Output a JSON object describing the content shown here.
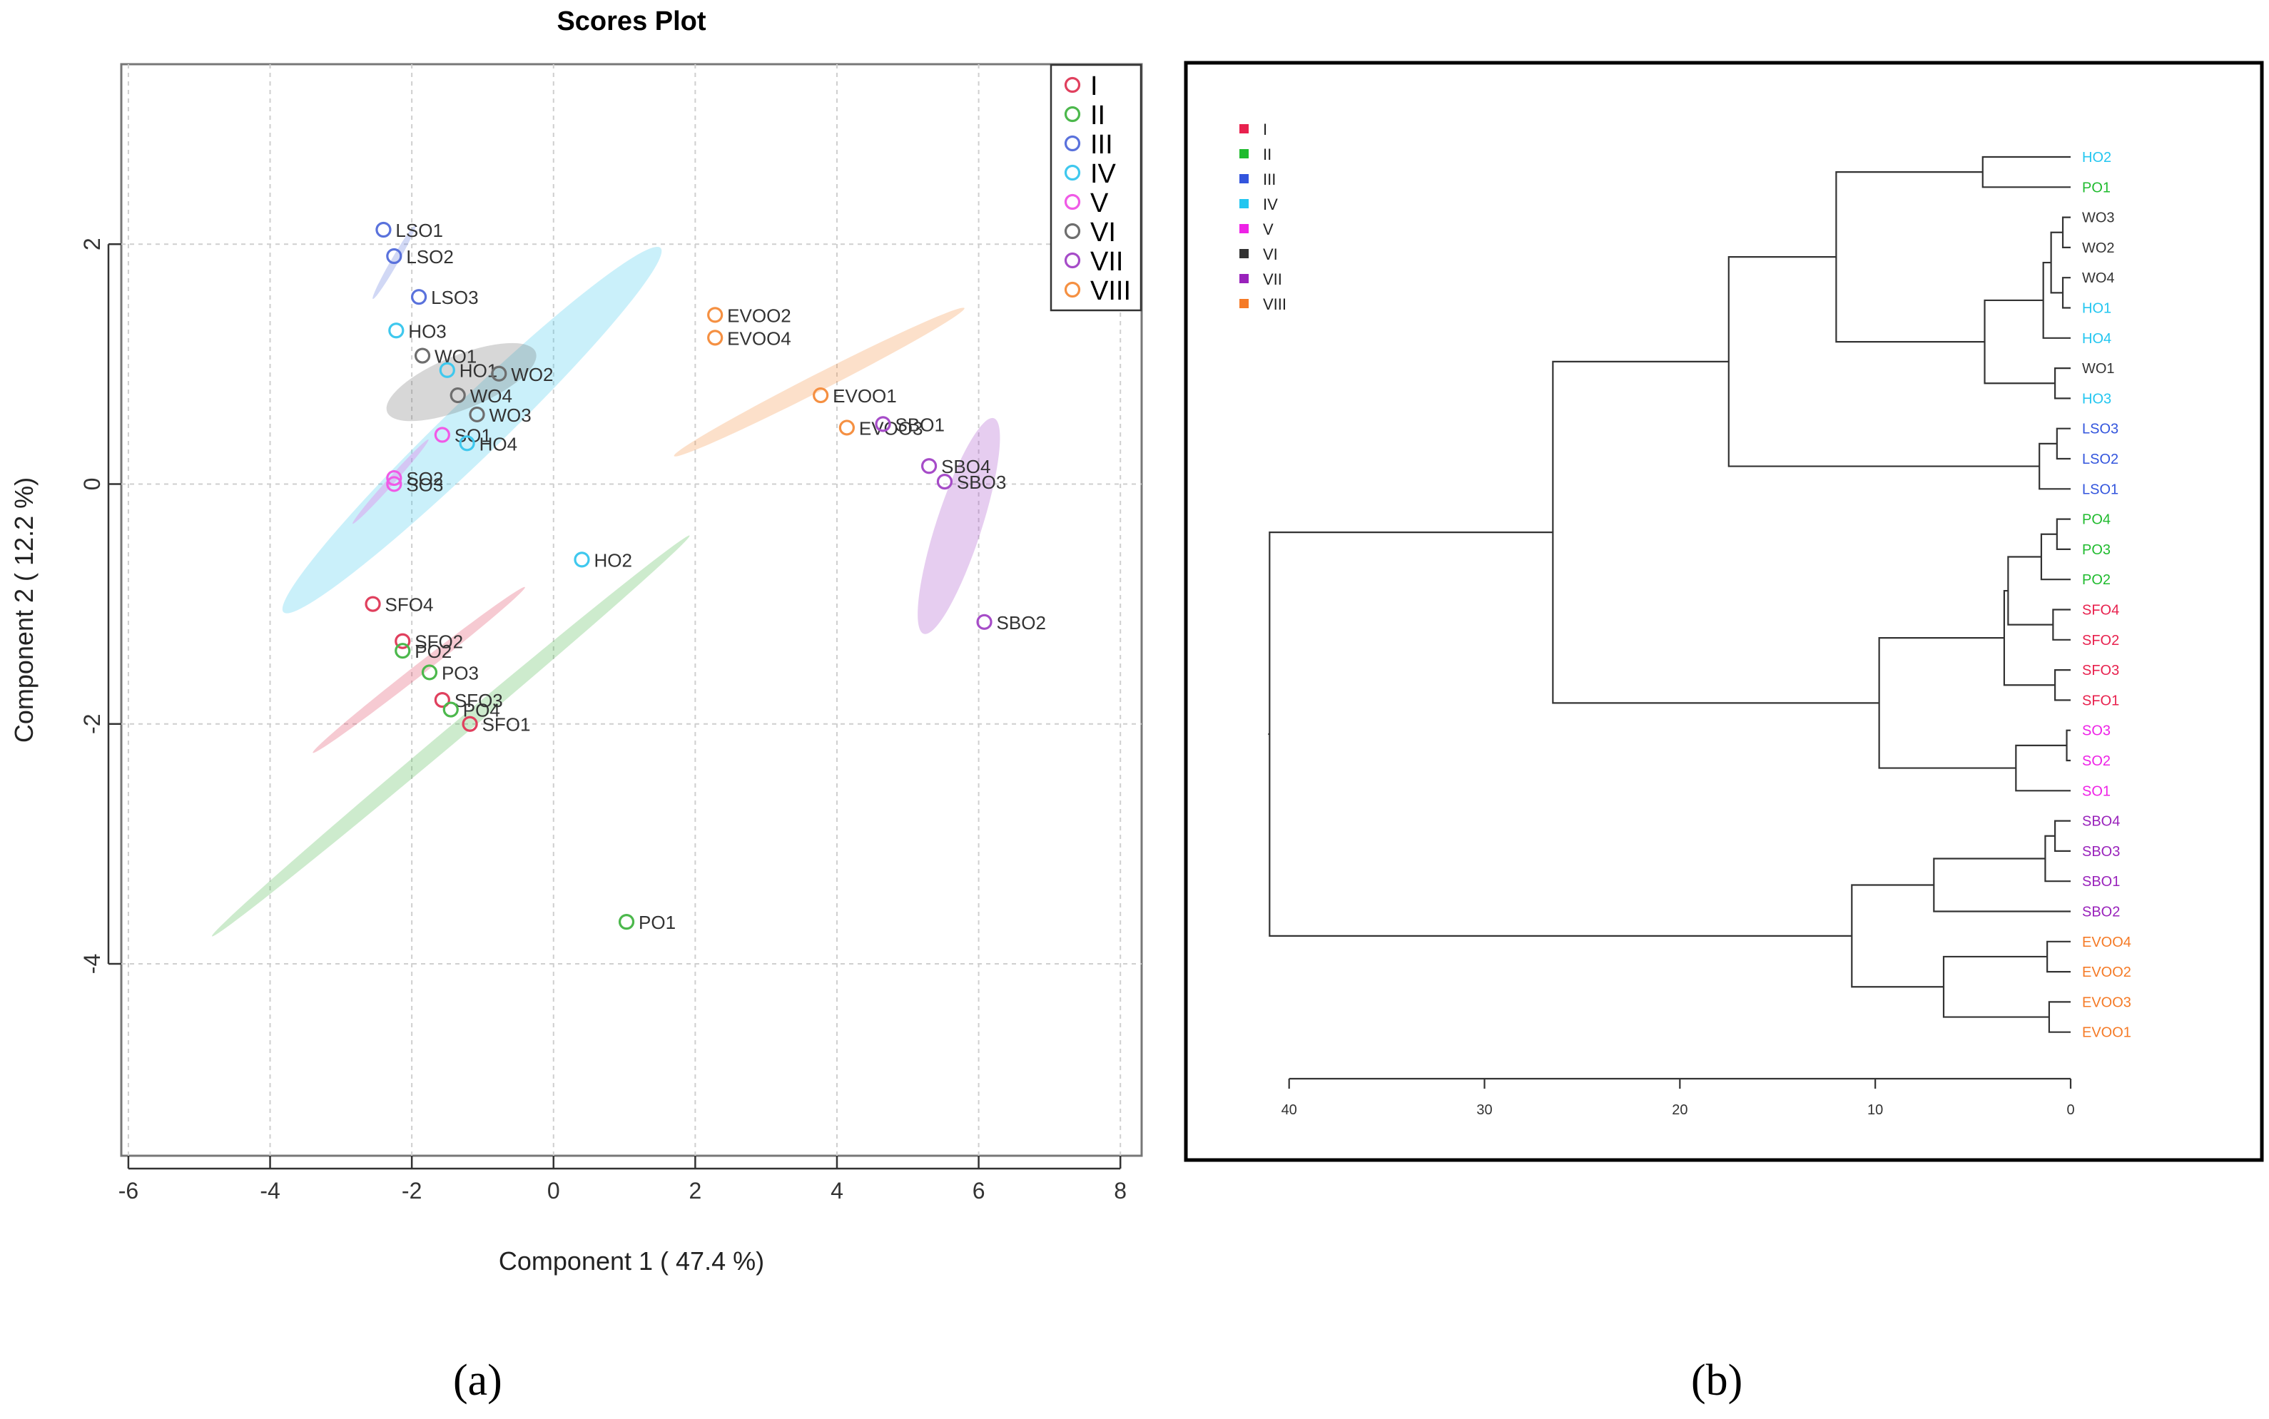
{
  "panel_labels": {
    "a": "(a)",
    "b": "(b)"
  },
  "chart_data": [
    {
      "type": "scatter",
      "title": "Scores Plot",
      "xlabel": "Component 1 ( 47.4 %)",
      "ylabel": "Component 2 ( 12.2 %)",
      "xlim": [
        -6.1,
        8.3
      ],
      "ylim": [
        -5.6,
        3.5
      ],
      "xticks": [
        -6,
        -4,
        -2,
        0,
        2,
        4,
        6,
        8
      ],
      "yticks": [
        -4,
        -2,
        0,
        2
      ],
      "grid": true,
      "legend": "top-right",
      "groups": [
        {
          "name": "I",
          "color": "#e0405e"
        },
        {
          "name": "II",
          "color": "#4cb84c"
        },
        {
          "name": "III",
          "color": "#5a72dc"
        },
        {
          "name": "IV",
          "color": "#3fc8ee"
        },
        {
          "name": "V",
          "color": "#f05ae6"
        },
        {
          "name": "VI",
          "color": "#6e6e6e"
        },
        {
          "name": "VII",
          "color": "#a64cc8"
        },
        {
          "name": "VIII",
          "color": "#f59042"
        }
      ],
      "ellipses": [
        {
          "group": "I",
          "cx": -1.9,
          "cy": -1.55,
          "a": 1.9,
          "b": 0.08,
          "angle": -38
        },
        {
          "group": "II",
          "cx": -1.45,
          "cy": -2.1,
          "a": 4.4,
          "b": 0.11,
          "angle": -40
        },
        {
          "group": "III",
          "cx": -2.25,
          "cy": 1.85,
          "a": 0.6,
          "b": 0.05,
          "angle": -60
        },
        {
          "group": "IV",
          "cx": -1.15,
          "cy": 0.45,
          "a": 3.7,
          "b": 0.4,
          "angle": -44
        },
        {
          "group": "V",
          "cx": -2.3,
          "cy": 0.02,
          "a": 0.8,
          "b": 0.05,
          "angle": -48
        },
        {
          "group": "VI",
          "cx": -1.3,
          "cy": 0.85,
          "a": 1.13,
          "b": 0.38,
          "angle": -22
        },
        {
          "group": "VII",
          "cx": 5.72,
          "cy": -0.35,
          "a": 1.6,
          "b": 0.32,
          "angle": -72
        },
        {
          "group": "VIII",
          "cx": 3.75,
          "cy": 0.85,
          "a": 2.3,
          "b": 0.12,
          "angle": -27
        }
      ],
      "points": [
        {
          "label": "LSO1",
          "group": "III",
          "x": -2.4,
          "y": 2.12
        },
        {
          "label": "LSO2",
          "group": "III",
          "x": -2.25,
          "y": 1.9
        },
        {
          "label": "LSO3",
          "group": "III",
          "x": -1.9,
          "y": 1.56
        },
        {
          "label": "HO3",
          "group": "IV",
          "x": -2.22,
          "y": 1.28
        },
        {
          "label": "WO1",
          "group": "VI",
          "x": -1.85,
          "y": 1.07
        },
        {
          "label": "HO1",
          "group": "IV",
          "x": -1.5,
          "y": 0.95
        },
        {
          "label": "WO2",
          "group": "VI",
          "x": -0.77,
          "y": 0.92
        },
        {
          "label": "WO4",
          "group": "VI",
          "x": -1.35,
          "y": 0.74
        },
        {
          "label": "WO3",
          "group": "VI",
          "x": -1.08,
          "y": 0.58
        },
        {
          "label": "SO1",
          "group": "V",
          "x": -1.57,
          "y": 0.41
        },
        {
          "label": "HO4",
          "group": "IV",
          "x": -1.22,
          "y": 0.34
        },
        {
          "label": "SO2",
          "group": "V",
          "x": -2.25,
          "y": 0.05
        },
        {
          "label": "SO3",
          "group": "V",
          "x": -2.25,
          "y": 0.0
        },
        {
          "label": "HO2",
          "group": "IV",
          "x": 0.4,
          "y": -0.63
        },
        {
          "label": "SFO4",
          "group": "I",
          "x": -2.55,
          "y": -1.0
        },
        {
          "label": "SFO2",
          "group": "I",
          "x": -2.13,
          "y": -1.31
        },
        {
          "label": "PO2",
          "group": "II",
          "x": -2.13,
          "y": -1.39
        },
        {
          "label": "PO3",
          "group": "II",
          "x": -1.75,
          "y": -1.57
        },
        {
          "label": "SFO3",
          "group": "I",
          "x": -1.57,
          "y": -1.8
        },
        {
          "label": "PO4",
          "group": "II",
          "x": -1.45,
          "y": -1.88
        },
        {
          "label": "SFO1",
          "group": "I",
          "x": -1.18,
          "y": -2.0
        },
        {
          "label": "PO1",
          "group": "II",
          "x": 1.03,
          "y": -3.65
        },
        {
          "label": "EVOO2",
          "group": "VIII",
          "x": 2.28,
          "y": 1.41
        },
        {
          "label": "EVOO4",
          "group": "VIII",
          "x": 2.28,
          "y": 1.22
        },
        {
          "label": "EVOO1",
          "group": "VIII",
          "x": 3.77,
          "y": 0.74
        },
        {
          "label": "EVOO3",
          "group": "VIII",
          "x": 4.14,
          "y": 0.47
        },
        {
          "label": "SBO1",
          "group": "VII",
          "x": 4.65,
          "y": 0.5
        },
        {
          "label": "SBO4",
          "group": "VII",
          "x": 5.3,
          "y": 0.15
        },
        {
          "label": "SBO3",
          "group": "VII",
          "x": 5.52,
          "y": 0.02
        },
        {
          "label": "SBO2",
          "group": "VII",
          "x": 6.08,
          "y": -1.15
        }
      ]
    },
    {
      "type": "dendrogram",
      "xlim": [
        40.5,
        0
      ],
      "xticks": [
        40,
        30,
        20,
        10,
        0
      ],
      "legend": "top-left",
      "groups": [
        {
          "name": "I",
          "color": "#e8214e"
        },
        {
          "name": "II",
          "color": "#1fbb2e"
        },
        {
          "name": "III",
          "color": "#3355dd"
        },
        {
          "name": "IV",
          "color": "#22c6f0"
        },
        {
          "name": "V",
          "color": "#ee22e6"
        },
        {
          "name": "VI",
          "color": "#333333"
        },
        {
          "name": "VII",
          "color": "#9922bb"
        },
        {
          "name": "VIII",
          "color": "#f57a26"
        }
      ],
      "leaves": [
        {
          "label": "HO2",
          "group": "IV"
        },
        {
          "label": "PO1",
          "group": "II"
        },
        {
          "label": "WO3",
          "group": "VI"
        },
        {
          "label": "WO2",
          "group": "VI"
        },
        {
          "label": "WO4",
          "group": "VI"
        },
        {
          "label": "HO1",
          "group": "IV"
        },
        {
          "label": "HO4",
          "group": "IV"
        },
        {
          "label": "WO1",
          "group": "VI"
        },
        {
          "label": "HO3",
          "group": "IV"
        },
        {
          "label": "LSO3",
          "group": "III"
        },
        {
          "label": "LSO2",
          "group": "III"
        },
        {
          "label": "LSO1",
          "group": "III"
        },
        {
          "label": "PO4",
          "group": "II"
        },
        {
          "label": "PO3",
          "group": "II"
        },
        {
          "label": "PO2",
          "group": "II"
        },
        {
          "label": "SFO4",
          "group": "I"
        },
        {
          "label": "SFO2",
          "group": "I"
        },
        {
          "label": "SFO3",
          "group": "I"
        },
        {
          "label": "SFO1",
          "group": "I"
        },
        {
          "label": "SO3",
          "group": "V"
        },
        {
          "label": "SO2",
          "group": "V"
        },
        {
          "label": "SO1",
          "group": "V"
        },
        {
          "label": "SBO4",
          "group": "VII"
        },
        {
          "label": "SBO3",
          "group": "VII"
        },
        {
          "label": "SBO1",
          "group": "VII"
        },
        {
          "label": "SBO2",
          "group": "VII"
        },
        {
          "label": "EVOO4",
          "group": "VIII"
        },
        {
          "label": "EVOO2",
          "group": "VIII"
        },
        {
          "label": "EVOO3",
          "group": "VIII"
        },
        {
          "label": "EVOO1",
          "group": "VIII"
        }
      ],
      "merges": [
        {
          "a": "L2",
          "b": "L3",
          "h": 0.4
        },
        {
          "a": "L4",
          "b": "L5",
          "h": 0.4
        },
        {
          "a": "M0",
          "b": "M1",
          "h": 1.0
        },
        {
          "a": "M2",
          "b": "L6",
          "h": 1.4
        },
        {
          "a": "L7",
          "b": "L8",
          "h": 0.8
        },
        {
          "a": "M3",
          "b": "M4",
          "h": 4.4
        },
        {
          "a": "L0",
          "b": "L1",
          "h": 4.5
        },
        {
          "a": "M6",
          "b": "M5",
          "h": 12.0
        },
        {
          "a": "L9",
          "b": "L10",
          "h": 0.7
        },
        {
          "a": "M8",
          "b": "L11",
          "h": 1.6
        },
        {
          "a": "M7",
          "b": "M9",
          "h": 17.5
        },
        {
          "a": "L12",
          "b": "L13",
          "h": 0.7
        },
        {
          "a": "M11",
          "b": "L14",
          "h": 1.5
        },
        {
          "a": "L15",
          "b": "L16",
          "h": 0.9
        },
        {
          "a": "M12",
          "b": "M13",
          "h": 3.2
        },
        {
          "a": "L17",
          "b": "L18",
          "h": 0.8
        },
        {
          "a": "M14",
          "b": "M15",
          "h": 3.4
        },
        {
          "a": "L19",
          "b": "L20",
          "h": 0.2
        },
        {
          "a": "M17",
          "b": "L21",
          "h": 2.8
        },
        {
          "a": "M16",
          "b": "M18",
          "h": 9.8
        },
        {
          "a": "M10",
          "b": "M19",
          "h": 26.5
        },
        {
          "a": "L22",
          "b": "L23",
          "h": 0.8
        },
        {
          "a": "M21",
          "b": "L24",
          "h": 1.3
        },
        {
          "a": "M22",
          "b": "L25",
          "h": 7.0
        },
        {
          "a": "L26",
          "b": "L27",
          "h": 1.2
        },
        {
          "a": "L28",
          "b": "L29",
          "h": 1.1
        },
        {
          "a": "M24",
          "b": "M25",
          "h": 6.5
        },
        {
          "a": "M23",
          "b": "M26",
          "h": 11.2
        },
        {
          "a": "M20",
          "b": "M27",
          "h": 41.0
        }
      ]
    }
  ]
}
